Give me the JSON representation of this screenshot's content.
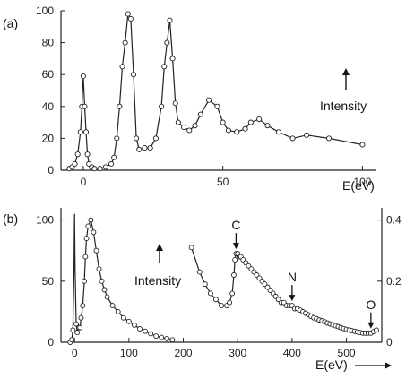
{
  "chart_data": [
    {
      "type": "line",
      "panel_label": "(a)",
      "xlabel": "E(eV)",
      "annotation": "Intensity",
      "xlim": [
        -8,
        105
      ],
      "ylim": [
        0,
        100
      ],
      "xticks": [
        "0",
        "50",
        "100"
      ],
      "xtick_values": [
        0,
        50,
        100
      ],
      "yticks": [
        "0",
        "20",
        "40",
        "60",
        "80",
        "100"
      ],
      "ytick_values": [
        0,
        20,
        40,
        60,
        80,
        100
      ],
      "series": [
        {
          "x": [
            -5,
            -4,
            -3,
            -2,
            -1,
            -0.5,
            0,
            0.5,
            1,
            1.5,
            2,
            3,
            4,
            6,
            8,
            10,
            11,
            12,
            13,
            14,
            15,
            16,
            17,
            18,
            19,
            20,
            22,
            24,
            26,
            28,
            29,
            30,
            31,
            32,
            33,
            34,
            36,
            38,
            40,
            42,
            45,
            48,
            50,
            52,
            55,
            58,
            60,
            63,
            66,
            70,
            75,
            80,
            88,
            100
          ],
          "values": [
            1,
            2,
            4,
            10,
            24,
            40,
            59,
            40,
            24,
            10,
            4,
            2,
            1,
            1,
            2,
            4,
            8,
            20,
            40,
            65,
            80,
            98,
            95,
            60,
            20,
            13,
            14,
            14,
            20,
            40,
            65,
            80,
            94,
            70,
            42,
            30,
            27,
            25,
            28,
            35,
            44,
            40,
            30,
            25,
            24,
            26,
            30,
            32,
            28,
            24,
            20,
            22,
            20,
            16
          ]
        }
      ]
    },
    {
      "type": "line",
      "panel_label": "(b)",
      "xlabel": "E(eV)",
      "annotation": "Intensity",
      "xlim": [
        -25,
        565
      ],
      "ylim": [
        0,
        110
      ],
      "y2lim": [
        0,
        0.44
      ],
      "xticks": [
        "0",
        "100",
        "200",
        "300",
        "400",
        "500"
      ],
      "xtick_values": [
        0,
        100,
        200,
        300,
        400,
        500
      ],
      "yticks": [
        "0",
        "50",
        "100"
      ],
      "ytick_values": [
        0,
        50,
        100
      ],
      "y2ticks": [
        "0",
        "0.2",
        "0.4"
      ],
      "y2tick_values": [
        0,
        0.2,
        0.4
      ],
      "edge_labels": [
        "C",
        "N",
        "O"
      ],
      "edge_positions": [
        297,
        400,
        545
      ],
      "series": [
        {
          "axis": "left",
          "x": [
            -8,
            -5,
            -3,
            -1,
            0,
            1,
            3,
            5,
            8,
            10,
            12,
            15,
            18,
            20,
            22,
            25,
            30,
            35,
            40,
            45,
            50,
            55,
            60,
            70,
            80,
            90,
            100,
            110,
            120,
            130,
            140,
            150,
            160,
            170,
            180
          ],
          "values": [
            0,
            2,
            10,
            60,
            105,
            60,
            15,
            8,
            12,
            12,
            20,
            30,
            50,
            70,
            85,
            95,
            100,
            90,
            75,
            60,
            50,
            43,
            37,
            30,
            25,
            20,
            17,
            14,
            11,
            9,
            7,
            5,
            4,
            3,
            2
          ]
        },
        {
          "axis": "right",
          "x": [
            215,
            230,
            240,
            250,
            260,
            270,
            280,
            285,
            290,
            293,
            295,
            297,
            300,
            303,
            306,
            310,
            315,
            320,
            325,
            330,
            335,
            340,
            345,
            350,
            355,
            360,
            365,
            370,
            375,
            380,
            385,
            390,
            395,
            400,
            405,
            410,
            415,
            420,
            425,
            430,
            435,
            440,
            445,
            450,
            455,
            460,
            465,
            470,
            475,
            480,
            485,
            490,
            495,
            500,
            505,
            510,
            515,
            520,
            525,
            530,
            535,
            540,
            545,
            550,
            555
          ],
          "values": [
            0.31,
            0.23,
            0.19,
            0.16,
            0.14,
            0.12,
            0.12,
            0.13,
            0.16,
            0.22,
            0.27,
            0.29,
            0.29,
            0.28,
            0.28,
            0.27,
            0.26,
            0.25,
            0.24,
            0.23,
            0.22,
            0.21,
            0.2,
            0.19,
            0.18,
            0.17,
            0.16,
            0.15,
            0.14,
            0.13,
            0.13,
            0.12,
            0.12,
            0.12,
            0.11,
            0.11,
            0.105,
            0.1,
            0.095,
            0.09,
            0.085,
            0.08,
            0.077,
            0.073,
            0.07,
            0.067,
            0.063,
            0.06,
            0.057,
            0.054,
            0.051,
            0.048,
            0.045,
            0.042,
            0.04,
            0.038,
            0.036,
            0.034,
            0.032,
            0.03,
            0.03,
            0.03,
            0.03,
            0.035,
            0.04
          ]
        }
      ]
    }
  ]
}
